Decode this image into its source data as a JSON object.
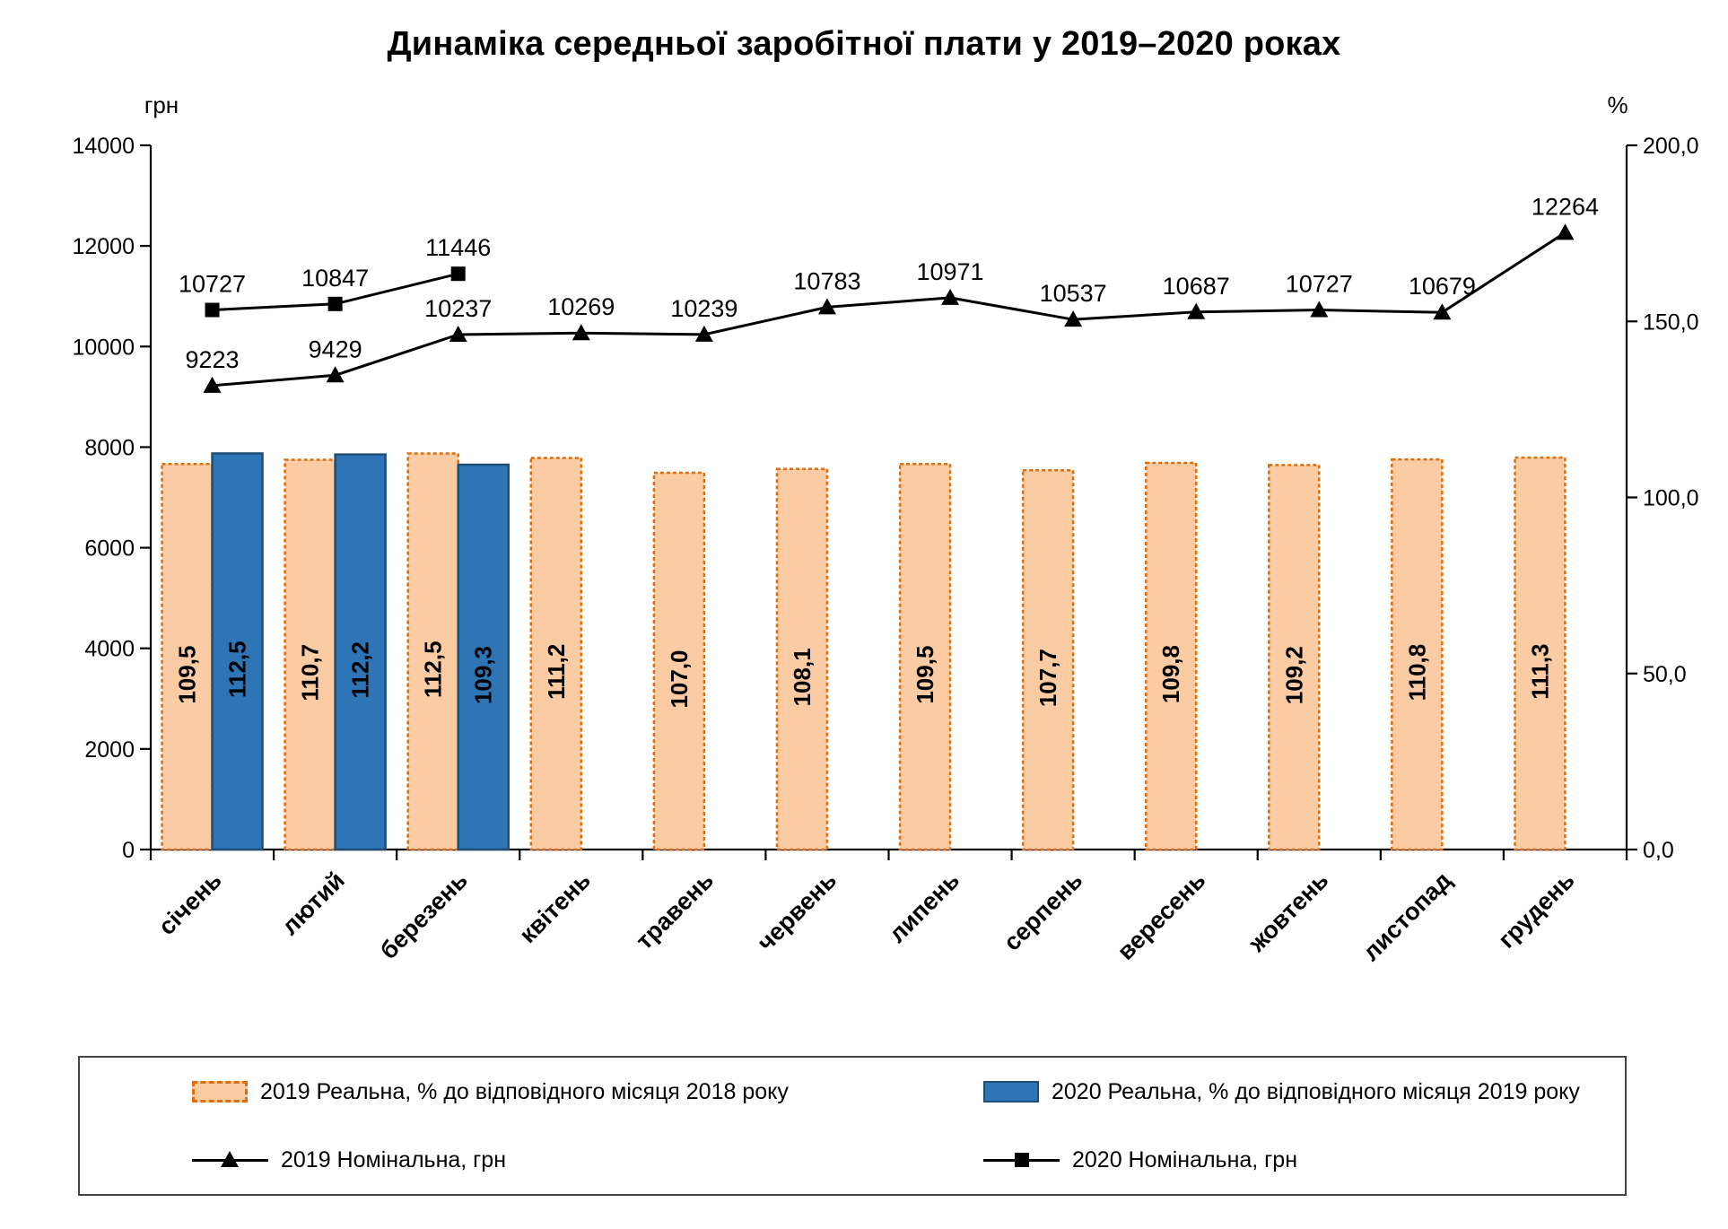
{
  "title": "Динаміка середньої заробітної плати у 2019–2020 роках",
  "chart_data": {
    "type": "combo-bar-line",
    "grid": false,
    "legend_position": "bottom",
    "categories": [
      "січень",
      "лютий",
      "березень",
      "квітень",
      "травень",
      "червень",
      "липень",
      "серпень",
      "вересень",
      "жовтень",
      "листопад",
      "грудень"
    ],
    "left_axis": {
      "label": "грн",
      "min": 0,
      "max": 14000,
      "step": 2000,
      "ticks": [
        "0",
        "2000",
        "4000",
        "6000",
        "8000",
        "10000",
        "12000",
        "14000"
      ]
    },
    "right_axis": {
      "label": "%",
      "min": 0,
      "max": 200,
      "step": 50,
      "ticks": [
        "0,0",
        "50,0",
        "100,0",
        "150,0",
        "200,0"
      ]
    },
    "series": [
      {
        "name": "2019 Реальна, % до відповідного місяця 2018 року",
        "type": "bar",
        "axis": "right",
        "color": "#FBCBA4",
        "border": "#E36C0A",
        "border_style": "dashed",
        "values": [
          109.5,
          110.7,
          112.5,
          111.2,
          107.0,
          108.1,
          109.5,
          107.7,
          109.8,
          109.2,
          110.8,
          111.3
        ],
        "labels": [
          "109,5",
          "110,7",
          "112,5",
          "111,2",
          "107,0",
          "108,1",
          "109,5",
          "107,7",
          "109,8",
          "109,2",
          "110,8",
          "111,3"
        ]
      },
      {
        "name": "2020 Реальна, % до відповідного місяця 2019 року",
        "type": "bar",
        "axis": "right",
        "color": "#2E75B6",
        "border": "#1F4E79",
        "border_style": "solid",
        "values": [
          112.5,
          112.2,
          109.3,
          null,
          null,
          null,
          null,
          null,
          null,
          null,
          null,
          null
        ],
        "labels": [
          "112,5",
          "112,2",
          "109,3"
        ]
      },
      {
        "name": "2019 Номінальна, грн",
        "type": "line",
        "axis": "left",
        "marker": "triangle",
        "color": "#000000",
        "values": [
          9223,
          9429,
          10237,
          10269,
          10239,
          10783,
          10971,
          10537,
          10687,
          10727,
          10679,
          12264
        ],
        "labels": [
          "9223",
          "9429",
          "10237",
          "10269",
          "10239",
          "10783",
          "10971",
          "10537",
          "10687",
          "10727",
          "10679",
          "12264"
        ]
      },
      {
        "name": "2020 Номінальна, грн",
        "type": "line",
        "axis": "left",
        "marker": "square",
        "color": "#000000",
        "values": [
          10727,
          10847,
          11446,
          null,
          null,
          null,
          null,
          null,
          null,
          null,
          null,
          null
        ],
        "labels": [
          "10727",
          "10847",
          "11446"
        ]
      }
    ]
  }
}
